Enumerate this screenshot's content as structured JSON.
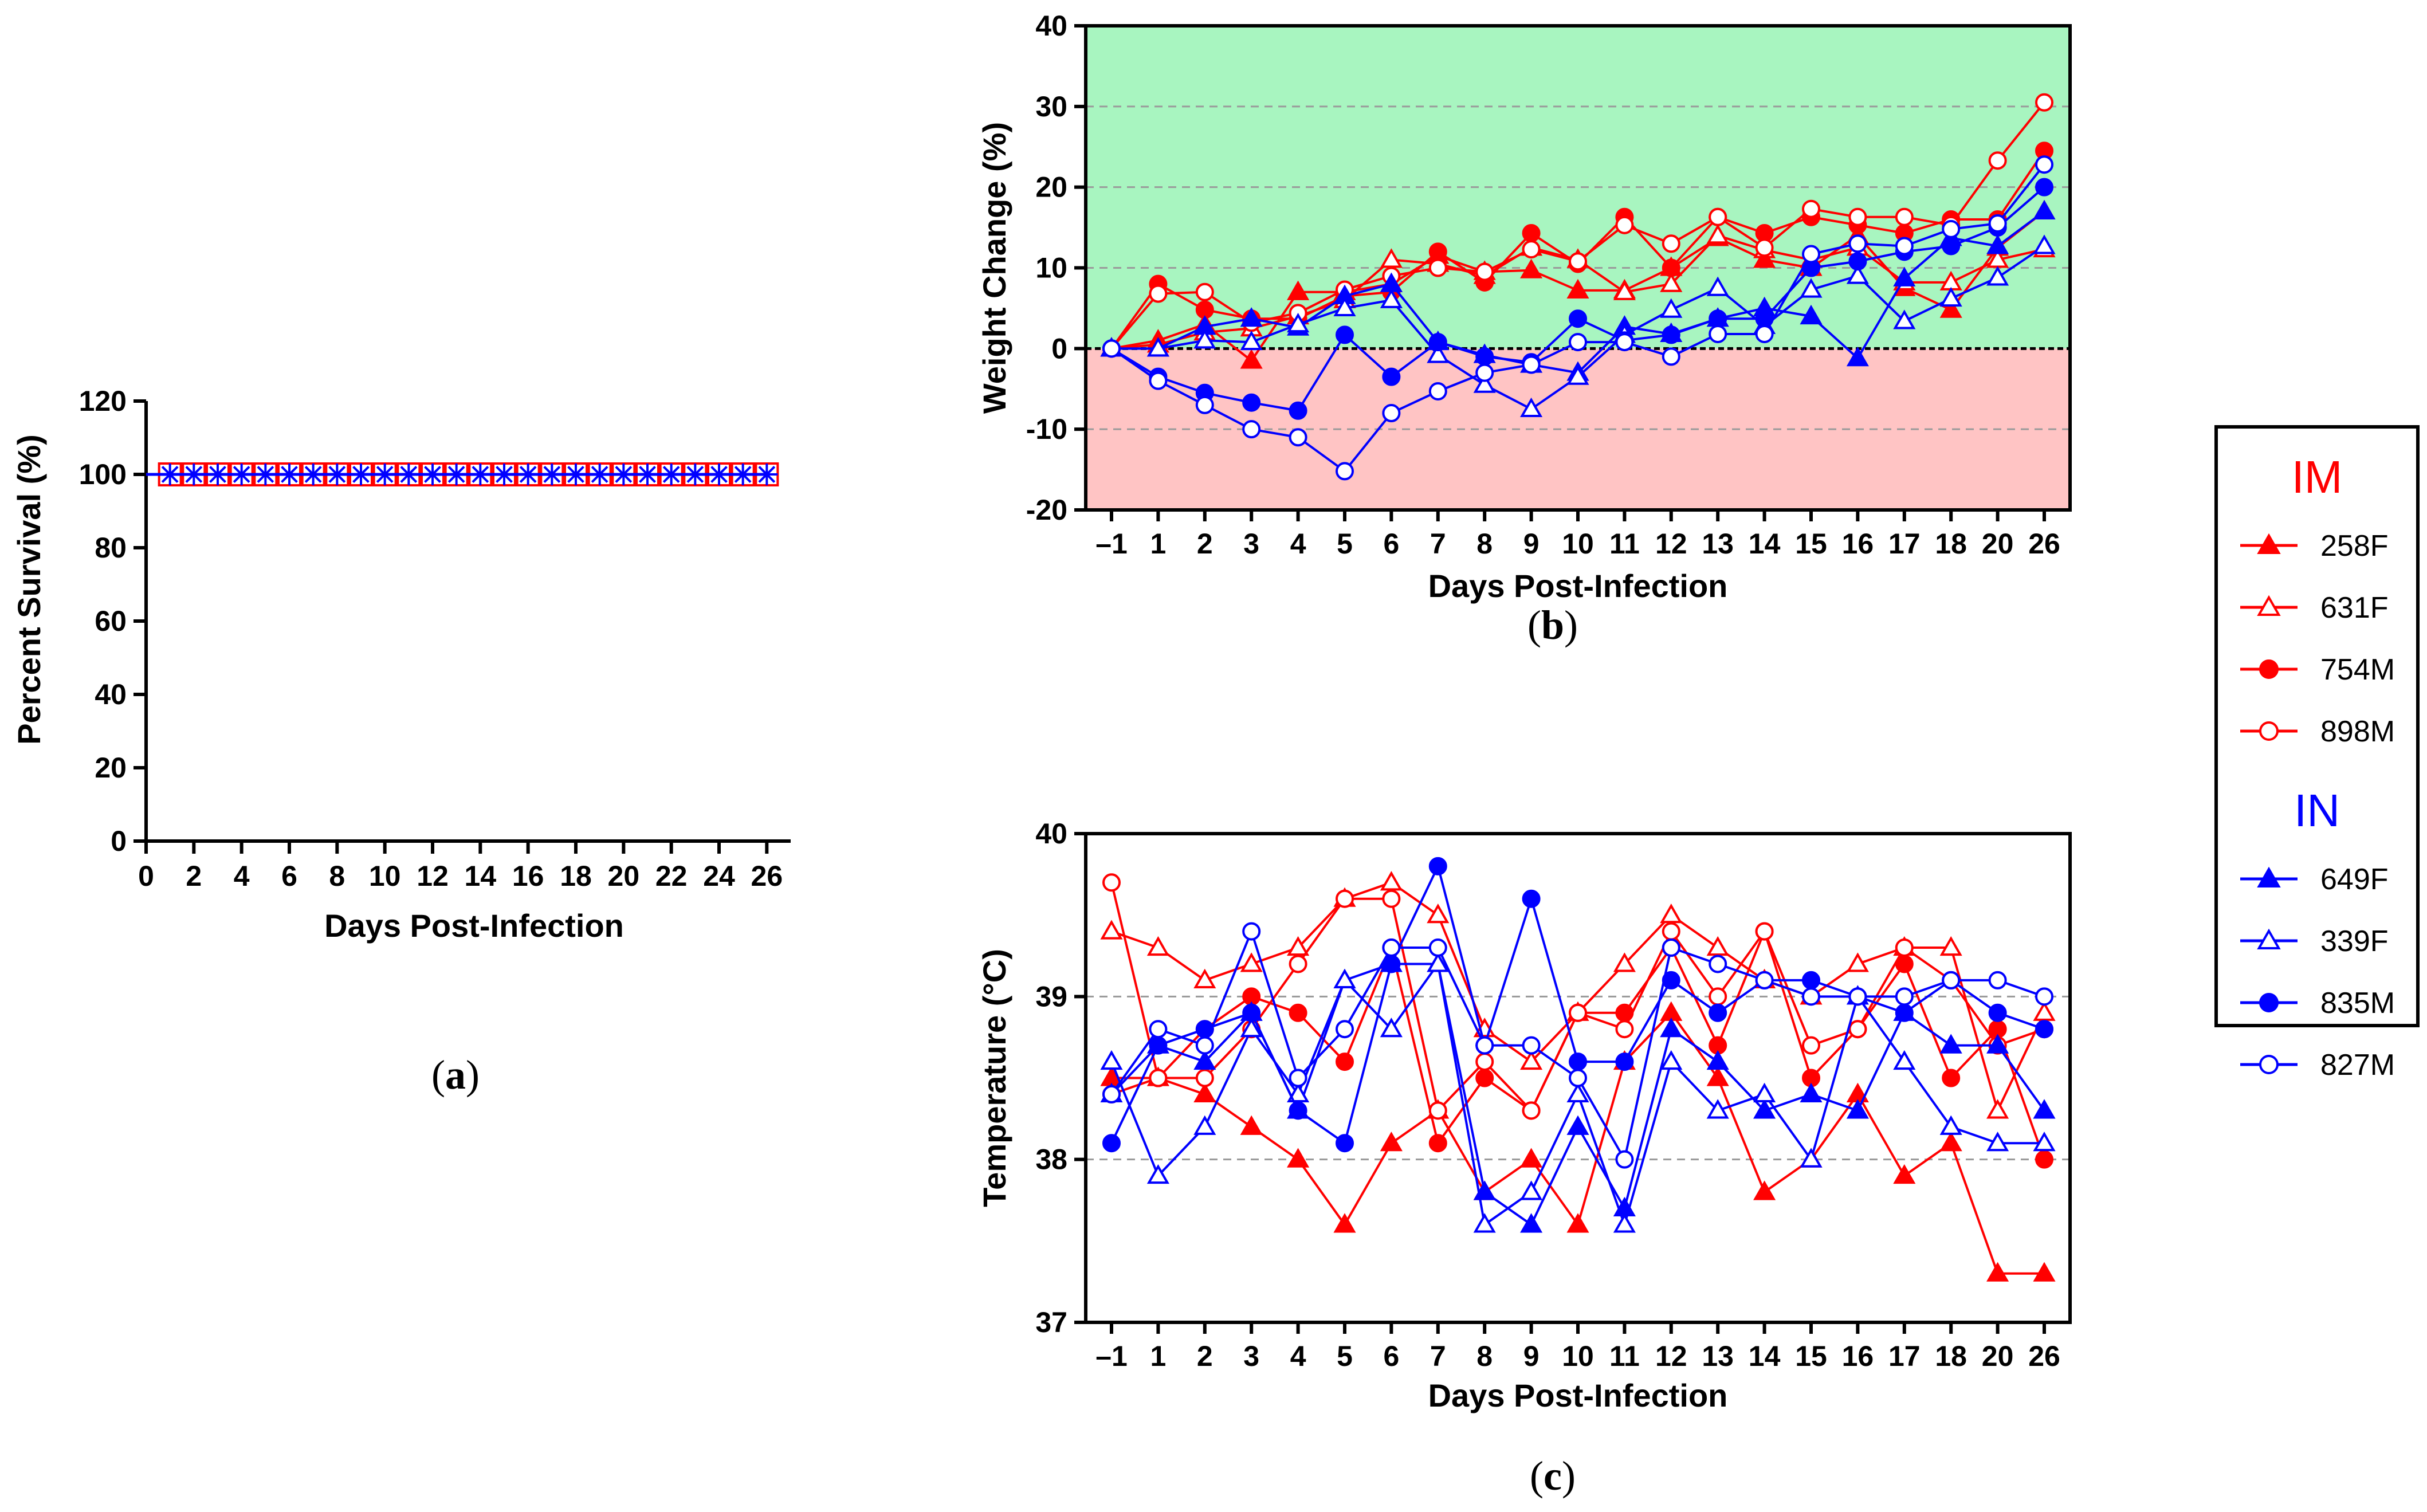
{
  "colors": {
    "red": "#ff0000",
    "blue": "#0000ff",
    "green_zone": "#a8f5c0",
    "red_zone": "#ffc4c4"
  },
  "panel_labels": {
    "a": "a",
    "b": "b",
    "c": "c"
  },
  "legend": {
    "groups": [
      {
        "name": "IM",
        "color": "#ff0000",
        "items": [
          {
            "label": "258F",
            "marker": "triangle",
            "filled": true
          },
          {
            "label": "631F",
            "marker": "triangle",
            "filled": false
          },
          {
            "label": "754M",
            "marker": "circle",
            "filled": true
          },
          {
            "label": "898M",
            "marker": "circle",
            "filled": false
          }
        ]
      },
      {
        "name": "IN",
        "color": "#0000ff",
        "items": [
          {
            "label": "649F",
            "marker": "triangle",
            "filled": true
          },
          {
            "label": "339F",
            "marker": "triangle",
            "filled": false
          },
          {
            "label": "835M",
            "marker": "circle",
            "filled": true
          },
          {
            "label": "827M",
            "marker": "circle",
            "filled": false
          }
        ]
      }
    ]
  },
  "chart_data": [
    {
      "id": "a",
      "type": "line",
      "title": "",
      "xlabel": "Days Post-Infection",
      "ylabel": "Percent Survival (%)",
      "xlim": [
        0,
        27
      ],
      "ylim": [
        0,
        120
      ],
      "xticks": [
        0,
        2,
        4,
        6,
        8,
        10,
        12,
        14,
        16,
        18,
        20,
        22,
        24,
        26
      ],
      "yticks": [
        0,
        20,
        40,
        60,
        80,
        100,
        120
      ],
      "grid": false,
      "series": [
        {
          "color": "#ff0000",
          "marker": "square-open",
          "x": [
            1,
            2,
            3,
            4,
            5,
            6,
            7,
            8,
            9,
            10,
            11,
            12,
            13,
            14,
            15,
            16,
            17,
            18,
            19,
            20,
            21,
            22,
            23,
            24,
            25,
            26
          ],
          "y": [
            100,
            100,
            100,
            100,
            100,
            100,
            100,
            100,
            100,
            100,
            100,
            100,
            100,
            100,
            100,
            100,
            100,
            100,
            100,
            100,
            100,
            100,
            100,
            100,
            100,
            100
          ]
        },
        {
          "color": "#0000ff",
          "marker": "asterisk",
          "x": [
            1,
            2,
            3,
            4,
            5,
            6,
            7,
            8,
            9,
            10,
            11,
            12,
            13,
            14,
            15,
            16,
            17,
            18,
            19,
            20,
            21,
            22,
            23,
            24,
            25,
            26
          ],
          "y": [
            100,
            100,
            100,
            100,
            100,
            100,
            100,
            100,
            100,
            100,
            100,
            100,
            100,
            100,
            100,
            100,
            100,
            100,
            100,
            100,
            100,
            100,
            100,
            100,
            100,
            100
          ]
        }
      ]
    },
    {
      "id": "b",
      "type": "line",
      "title": "",
      "xlabel": "Days Post-Infection",
      "ylabel": "Weight Change (%)",
      "categories": [
        "–1",
        "1",
        "2",
        "3",
        "4",
        "5",
        "6",
        "7",
        "8",
        "9",
        "10",
        "11",
        "12",
        "13",
        "14",
        "15",
        "16",
        "17",
        "18",
        "20",
        "26"
      ],
      "ylim": [
        -20,
        40
      ],
      "yticks": [
        -20,
        -10,
        0,
        10,
        20,
        30,
        40
      ],
      "grid": true,
      "background_bands": [
        {
          "from": 0,
          "to": 40,
          "color": "#a8f5c0"
        },
        {
          "from": -20,
          "to": 0,
          "color": "#ffc4c4"
        }
      ],
      "series": [
        {
          "name": "258F",
          "color": "#ff0000",
          "marker": "triangle",
          "filled": true,
          "values": [
            0,
            1,
            3,
            -1.5,
            7,
            7,
            8,
            11.5,
            9.5,
            9.7,
            7.2,
            7.2,
            10,
            13.7,
            11,
            10,
            14,
            7.5,
            4.8,
            12.5,
            17
          ]
        },
        {
          "name": "631F",
          "color": "#ff0000",
          "marker": "triangle",
          "filled": false,
          "values": [
            0,
            0.5,
            2,
            2.5,
            4,
            6,
            11,
            10.5,
            9,
            12.5,
            11,
            7,
            8,
            14,
            12.2,
            11,
            12.5,
            8.2,
            8.2,
            11,
            12.3
          ]
        },
        {
          "name": "754M",
          "color": "#ff0000",
          "marker": "circle",
          "filled": true,
          "values": [
            0,
            8,
            4.8,
            3.7,
            3.7,
            6.5,
            7,
            12,
            8.2,
            14.3,
            10.5,
            16.3,
            10,
            16.3,
            14.3,
            16.3,
            15.3,
            14.3,
            16,
            16,
            24.5
          ]
        },
        {
          "name": "898M",
          "color": "#ff0000",
          "marker": "circle",
          "filled": false,
          "values": [
            0,
            6.8,
            7,
            3.2,
            4.4,
            7.3,
            9,
            10,
            9.5,
            12.3,
            10.8,
            15.3,
            13,
            16.3,
            12.5,
            17.3,
            16.3,
            16.3,
            15.3,
            23.3,
            30.5
          ]
        },
        {
          "name": "649F",
          "color": "#0000ff",
          "marker": "triangle",
          "filled": true,
          "values": [
            0,
            0,
            2.7,
            3.7,
            2.6,
            6.5,
            8,
            0.8,
            -0.8,
            -2,
            -3,
            2.7,
            1.8,
            3.7,
            5,
            4,
            -1.2,
            8.7,
            13.7,
            12.7,
            17
          ]
        },
        {
          "name": "339F",
          "color": "#0000ff",
          "marker": "triangle",
          "filled": false,
          "values": [
            0,
            0,
            1,
            0.8,
            3,
            5,
            6,
            -0.8,
            -4.5,
            -7.5,
            -3.5,
            1.7,
            4.8,
            7.5,
            2.8,
            7.3,
            9,
            3.4,
            6.2,
            8.8,
            12.7
          ]
        },
        {
          "name": "835M",
          "color": "#0000ff",
          "marker": "circle",
          "filled": true,
          "values": [
            0,
            -3.5,
            -5.5,
            -6.7,
            -7.7,
            1.7,
            -3.5,
            0.8,
            -1,
            -1.7,
            3.7,
            1,
            1.7,
            3.7,
            3.7,
            10,
            10.8,
            12,
            12.7,
            15,
            20
          ]
        },
        {
          "name": "827M",
          "color": "#0000ff",
          "marker": "circle",
          "filled": false,
          "values": [
            0,
            -4,
            -7,
            -10,
            -11,
            -15.2,
            -8,
            -5.3,
            -3,
            -2,
            0.8,
            0.8,
            -1,
            1.8,
            1.8,
            11.7,
            13,
            12.7,
            14.8,
            15.5,
            22.8
          ]
        }
      ]
    },
    {
      "id": "c",
      "type": "line",
      "title": "",
      "xlabel": "Days Post-Infection",
      "ylabel": "Temperature (°C)",
      "categories": [
        "–1",
        "1",
        "2",
        "3",
        "4",
        "5",
        "6",
        "7",
        "8",
        "9",
        "10",
        "11",
        "12",
        "13",
        "14",
        "15",
        "16",
        "17",
        "18",
        "20",
        "26"
      ],
      "ylim": [
        37,
        40
      ],
      "yticks": [
        37,
        38,
        39,
        40
      ],
      "grid": true,
      "series": [
        {
          "name": "258F",
          "color": "#ff0000",
          "marker": "triangle",
          "filled": true,
          "values": [
            38.5,
            38.5,
            38.4,
            38.2,
            38.0,
            37.6,
            38.1,
            38.3,
            37.8,
            38.0,
            37.6,
            38.6,
            38.9,
            38.5,
            37.8,
            38.0,
            38.4,
            37.9,
            38.1,
            37.3,
            37.3
          ]
        },
        {
          "name": "631F",
          "color": "#ff0000",
          "marker": "triangle",
          "filled": false,
          "values": [
            39.4,
            39.3,
            39.1,
            39.2,
            39.3,
            39.6,
            39.7,
            39.5,
            38.8,
            38.6,
            38.9,
            39.2,
            39.5,
            39.3,
            39.1,
            39.0,
            39.2,
            39.3,
            39.3,
            38.3,
            38.9
          ]
        },
        {
          "name": "754M",
          "color": "#ff0000",
          "marker": "circle",
          "filled": true,
          "values": [
            38.4,
            38.5,
            38.8,
            39.0,
            38.9,
            38.6,
            39.3,
            38.1,
            38.5,
            38.3,
            38.9,
            38.9,
            39.3,
            38.7,
            39.4,
            38.5,
            38.8,
            39.2,
            38.5,
            38.8,
            38.0
          ]
        },
        {
          "name": "898M",
          "color": "#ff0000",
          "marker": "circle",
          "filled": false,
          "values": [
            39.7,
            38.5,
            38.5,
            38.8,
            39.2,
            39.6,
            39.6,
            38.3,
            38.6,
            38.3,
            38.9,
            38.8,
            39.4,
            39.0,
            39.4,
            38.7,
            38.8,
            39.3,
            39.1,
            38.7,
            38.8
          ]
        },
        {
          "name": "649F",
          "color": "#0000ff",
          "marker": "triangle",
          "filled": true,
          "values": [
            38.4,
            38.7,
            38.6,
            38.9,
            38.3,
            39.1,
            39.2,
            39.2,
            37.8,
            37.6,
            38.2,
            37.7,
            38.8,
            38.6,
            38.3,
            38.4,
            38.3,
            38.9,
            38.7,
            38.7,
            38.3
          ]
        },
        {
          "name": "339F",
          "color": "#0000ff",
          "marker": "triangle",
          "filled": false,
          "values": [
            38.6,
            37.9,
            38.2,
            38.8,
            38.4,
            39.1,
            38.8,
            39.2,
            37.6,
            37.8,
            38.4,
            37.6,
            38.6,
            38.3,
            38.4,
            38.0,
            39.0,
            38.6,
            38.2,
            38.1,
            38.1
          ]
        },
        {
          "name": "835M",
          "color": "#0000ff",
          "marker": "circle",
          "filled": true,
          "values": [
            38.1,
            38.7,
            38.8,
            38.9,
            38.3,
            38.1,
            39.2,
            39.8,
            38.7,
            39.6,
            38.6,
            38.6,
            39.1,
            38.9,
            39.1,
            39.1,
            39.0,
            38.9,
            39.1,
            38.9,
            38.8
          ]
        },
        {
          "name": "827M",
          "color": "#0000ff",
          "marker": "circle",
          "filled": false,
          "values": [
            38.4,
            38.8,
            38.7,
            39.4,
            38.5,
            38.8,
            39.3,
            39.3,
            38.7,
            38.7,
            38.5,
            38.0,
            39.3,
            39.2,
            39.1,
            39.0,
            39.0,
            39.0,
            39.1,
            39.1,
            39.0
          ]
        }
      ]
    }
  ]
}
